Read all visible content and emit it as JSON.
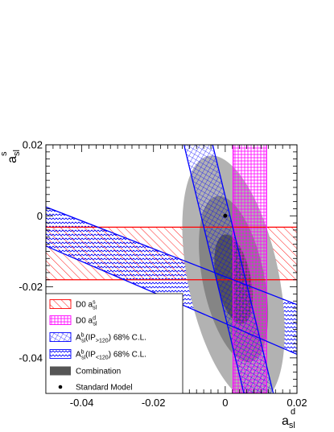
{
  "chart_data": {
    "type": "scatter",
    "title": "",
    "xlabel": {
      "main": "a",
      "sup": "d",
      "sub": "sl"
    },
    "ylabel": {
      "main": "a",
      "sup": "s",
      "sub": "sl"
    },
    "xlim": [
      -0.05,
      0.02
    ],
    "ylim": [
      -0.05,
      0.02
    ],
    "x_ticks": [
      -0.04,
      -0.02,
      0,
      0.02
    ],
    "x_tick_labels": [
      "-0.04",
      "-0.02",
      "0",
      "0.02"
    ],
    "y_ticks": [
      -0.04,
      -0.02,
      0,
      0.02
    ],
    "y_tick_labels": [
      "-0.04",
      "-0.02",
      "0",
      "0.02"
    ],
    "grid": false,
    "legend_placement": "bottom-left",
    "bands": {
      "d0_asls": {
        "y_low": -0.018,
        "y_high": -0.0032,
        "color": "#ff0000"
      },
      "d0_asld": {
        "x_low": 0.0022,
        "x_high": 0.0115,
        "color": "#ff00ff"
      },
      "ip_gt120": {
        "x_at_y_max": [
          -0.0115,
          -0.0035
        ],
        "x_at_y_min": [
          0.0052,
          0.0134
        ],
        "color": "#0000ff"
      },
      "ip_lt120": {
        "y_at_x_min": [
          0.0025,
          -0.0085
        ],
        "y_at_x_max": [
          -0.025,
          -0.039
        ],
        "color": "#0000ff"
      }
    },
    "combination": {
      "center": [
        0.0023,
        -0.0178
      ],
      "contours": [
        {
          "level": "outer",
          "a": 0.0127,
          "b": 0.0354,
          "angle_deg": -11.5,
          "color": "#b2b2b2"
        },
        {
          "level": "middle",
          "a": 0.0086,
          "b": 0.0238,
          "angle_deg": -11.5,
          "color": "#858585"
        },
        {
          "level": "inner",
          "a": 0.0048,
          "b": 0.0128,
          "angle_deg": -11.5,
          "color": "#555555"
        }
      ]
    },
    "standard_model": {
      "x": 0.0,
      "y": 0.0
    },
    "legend": [
      {
        "key": "d0_asls",
        "main": "D0 a",
        "sup": "s",
        "sub": "sl",
        "rest": ""
      },
      {
        "key": "d0_asld",
        "main": "D0 a",
        "sup": "d",
        "sub": "sl",
        "rest": ""
      },
      {
        "key": "ip_gt120",
        "main": "A",
        "sup": "b",
        "sub": "sl",
        "paren_open": "(IP",
        "paren_sub": ">120",
        "paren_close": ")",
        "rest": " 68% C.L."
      },
      {
        "key": "ip_lt120",
        "main": "A",
        "sup": "b",
        "sub": "sl",
        "paren_open": "(IP",
        "paren_sub": "<120",
        "paren_close": ")",
        "rest": " 68% C.L."
      },
      {
        "key": "combination",
        "main": "Combination"
      },
      {
        "key": "standard_model",
        "main": "Standard Model"
      }
    ]
  }
}
